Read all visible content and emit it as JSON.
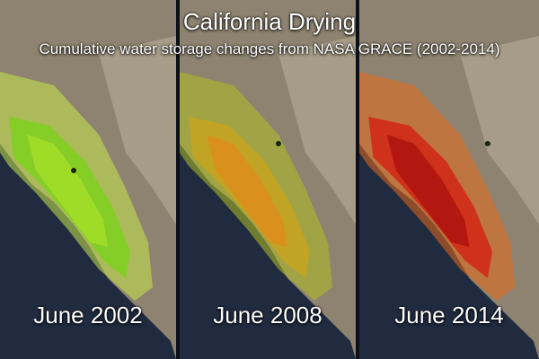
{
  "title": "California Drying",
  "subtitle": "Cumulative water storage changes from NASA GRACE (2002-2014)",
  "panels": [
    {
      "label": "June 2002",
      "overlay_colors": [
        "#7ad21a",
        "#a8e02a",
        "#c8e84a"
      ]
    },
    {
      "label": "June 2008",
      "overlay_colors": [
        "#c9a41c",
        "#e08a1a",
        "#b3bf22"
      ]
    },
    {
      "label": "June 2014",
      "overlay_colors": [
        "#d42012",
        "#a8100c",
        "#e86a1a"
      ]
    }
  ],
  "colors": {
    "ocean": "#1f2a3f",
    "land": "#8f8572",
    "land_light": "#b5ac98"
  }
}
